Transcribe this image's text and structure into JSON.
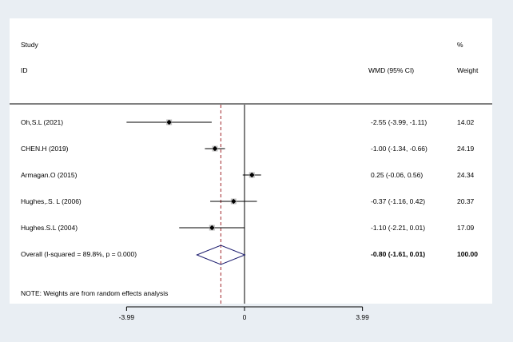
{
  "header": {
    "study_label": "Study",
    "id_label": "ID",
    "effect_label": "WMD (95% CI)",
    "pct_label": "%",
    "weight_label": "Weight"
  },
  "chart_data": {
    "type": "forest",
    "xlabel": "",
    "ylabel": "",
    "xlim": [
      -3.99,
      3.99
    ],
    "xticks": [
      -3.99,
      0,
      3.99
    ],
    "tick_labels": [
      "-3.99",
      "0",
      "3.99"
    ],
    "reference_line": 0,
    "overall_line": -0.8,
    "studies": [
      {
        "id": "Oh,S.L (2021)",
        "wmd": -2.55,
        "lower": -3.99,
        "upper": -1.11,
        "ci_text": "-2.55 (-3.99, -1.11)",
        "weight": "14.02"
      },
      {
        "id": "CHEN.H (2019)",
        "wmd": -1.0,
        "lower": -1.34,
        "upper": -0.66,
        "ci_text": "-1.00 (-1.34, -0.66)",
        "weight": "24.19"
      },
      {
        "id": "Armagan.O (2015)",
        "wmd": 0.25,
        "lower": -0.06,
        "upper": 0.56,
        "ci_text": "0.25 (-0.06, 0.56)",
        "weight": "24.34"
      },
      {
        "id": "Hughes,.S. L (2006)",
        "wmd": -0.37,
        "lower": -1.16,
        "upper": 0.42,
        "ci_text": "-0.37 (-1.16, 0.42)",
        "weight": "20.37"
      },
      {
        "id": "Hughes.S.L (2004)",
        "wmd": -1.1,
        "lower": -2.21,
        "upper": 0.01,
        "ci_text": "-1.10 (-2.21, 0.01)",
        "weight": "17.09"
      }
    ],
    "overall": {
      "label": "Overall  (I-squared = 89.8%, p = 0.000)",
      "wmd": -0.8,
      "lower": -1.61,
      "upper": 0.01,
      "ci_text": "-0.80 (-1.61, 0.01)",
      "weight": "100.00"
    },
    "note": "NOTE: Weights are from random effects analysis"
  }
}
